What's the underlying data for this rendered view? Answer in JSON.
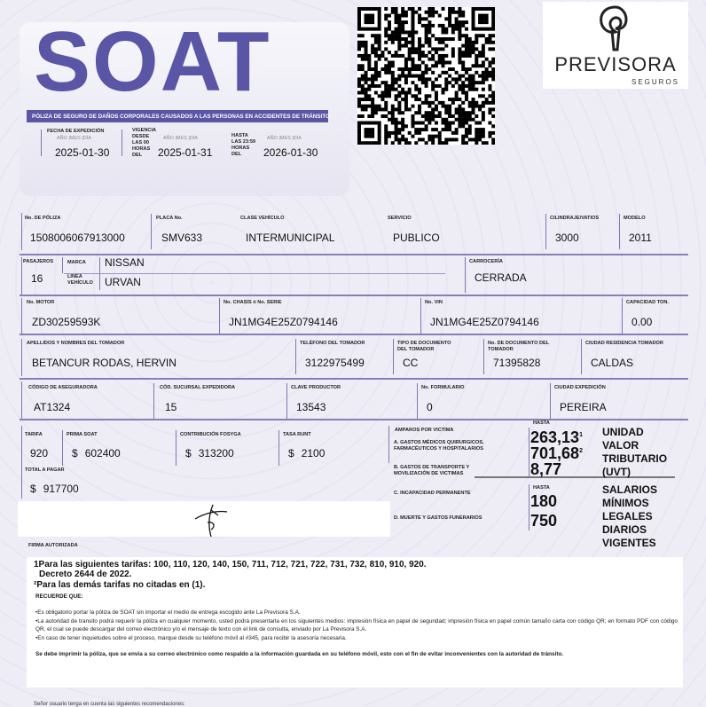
{
  "header": {
    "title": "SOAT",
    "subtitle": "PÓLIZA DE SEGURO DE DAÑOS CORPORALES CAUSADOS A LAS PERSONAS EN ACCIDENTES DE TRÁNSITO",
    "expedicion_label": "FECHA DE EXPEDICIÓN",
    "date_parts": "AÑO  |MES  |DÍA",
    "expedicion": "2025-01-30",
    "vigencia_label": "VIGENCIA",
    "desde_label": "DESDE LAS 00 HORAS DEL",
    "desde": "2025-01-31",
    "hasta_label": "HASTA LAS 23:59 HORAS DEL",
    "hasta": "2026-01-30"
  },
  "logo": {
    "name": "PREVISORA",
    "tagline": "SEGUROS"
  },
  "fields": {
    "poliza": {
      "label": "No. DE PÓLIZA",
      "value": "1508006067913000"
    },
    "placa": {
      "label": "PLACA No.",
      "value": "SMV633"
    },
    "clase": {
      "label": "CLASE VEHÍCULO",
      "value": "INTERMUNICIPAL"
    },
    "servicio": {
      "label": "SERVICIO",
      "value": "PUBLICO"
    },
    "cilindraje": {
      "label": "CILINDRAJE/VATIOS",
      "value": "3000"
    },
    "modelo": {
      "label": "MODELO",
      "value": "2011"
    },
    "pasajeros": {
      "label": "PASAJEROS",
      "value": "16"
    },
    "marca": {
      "label": "MARCA",
      "value": "NISSAN"
    },
    "linea": {
      "label": "LÍNEA VEHÍCULO",
      "value": "URVAN"
    },
    "carroceria": {
      "label": "CARROCERÍA",
      "value": "CERRADA"
    },
    "motor": {
      "label": "No. MOTOR",
      "value": "ZD30259593K"
    },
    "chasis": {
      "label": "No. CHASIS ó No. SERIE",
      "value": "JN1MG4E25Z0794146"
    },
    "vin": {
      "label": "No. VIN",
      "value": "JN1MG4E25Z0794146"
    },
    "capacidad": {
      "label": "CAPACIDAD TON.",
      "value": "0.00"
    },
    "tomador": {
      "label": "APELLIDOS Y NOMBRES DEL TOMADOR",
      "value": "BETANCUR RODAS, HERVIN"
    },
    "telefono": {
      "label": "TELÉFONO DEL TOMADOR",
      "value": "3122975499"
    },
    "tipo_doc": {
      "label": "TIPO DE DOCUMENTO DEL TOMADOR",
      "value": "CC"
    },
    "num_doc": {
      "label": "No. DE DOCUMENTO DEL TOMADOR",
      "value": "71395828"
    },
    "ciudad_res": {
      "label": "CIUDAD RESIDENCIA TOMADOR",
      "value": "CALDAS"
    },
    "cod_aseg": {
      "label": "CÓDIGO DE ASEGURADORA",
      "value": "AT1324"
    },
    "sucursal": {
      "label": "CÓD. SUCURSAL EXPEDIDORA",
      "value": "15"
    },
    "productor": {
      "label": "CLAVE PRODUCTOR",
      "value": "13543"
    },
    "formulario": {
      "label": "No. FORMULARIO",
      "value": "0"
    },
    "ciudad_exp": {
      "label": "CIUDAD EXPEDICIÓN",
      "value": "PEREIRA"
    },
    "tarifa": {
      "label": "TARIFA",
      "value": "920"
    },
    "prima": {
      "label": "PRIMA SOAT",
      "value": "602400"
    },
    "fosyga": {
      "label": "CONTRIBUCIÓN FOSYGA",
      "value": "313200"
    },
    "runt": {
      "label": "TASA RUNT",
      "value": "2100"
    },
    "total": {
      "label": "TOTAL A PAGAR",
      "value": "917700"
    },
    "currency": "$"
  },
  "amparos": {
    "title": "AMPAROS POR VICTIMA",
    "hasta": "HASTA",
    "a": "A. GASTOS MÉDICOS QUIRURGICOS, FARMACÉUTICOS Y HOSPITALARIOS",
    "b": "B. GASTOS DE TRANSPORTE Y MOVILIZACIÓN DE VICTIMAS",
    "c": "C. INCAPACIDAD PERMANENTE",
    "d": "D. MUERTE Y GASTOS FUNERARIOS",
    "a1": "263,13",
    "a1_sup": "1",
    "a2": "701,68",
    "a2_sup": "2",
    "b_val": "8,77",
    "uvt": [
      "UNIDAD",
      "VALOR",
      "TRIBUTARIO",
      "(UVT)"
    ],
    "c_val": "180",
    "d_val": "750",
    "smldv": [
      "SALARIOS",
      "MÍNIMOS",
      "LEGALES",
      "DIARIOS",
      "VIGENTES"
    ]
  },
  "firma": "FIRMA AUTORIZADA",
  "notes": {
    "n1": "1Para las siguientes tarifas: 100, 110, 120, 140, 150, 711, 712, 721, 722, 731, 732, 810, 910, 920.",
    "n1b": "Decreto 2644 de 2022.",
    "n2": "²Para las demás tarifas no citadas en (1).",
    "recuerde": "RECUERDE QUE:",
    "b1": "•Es obligatorio  portar la póliza de SOAT sin importar el medio de entrega escogido ante La Previsora S.A.",
    "b2": "•La autoridad de transito podrá requerir la póliza en cualquier momento,  usted podrá presentarla en los siguientes medios: impresión física en papel de seguridad; impresión física en papel común tamaño carta con código QR; en formato PDF con código QR, el cual se puede descargar del correo electrónico y/o el mensaje de texto con el link de consulta, enviado por La Previsora S.A.",
    "b3": "•En caso de tener inquietudes sobre el proceso, marque desde su teléfono móvil al #345, para recibir la asesoría necesaria.",
    "bold": "Se debe imprimir la póliza, que se envia a su correo electrónico como respaldo a la información guardada en su teléfono móvil, esto con el fin de evitar  inconvenientes con la autoridad de tránsito."
  },
  "footer": "Señor usuario tenga en cuenta las siguientes recomendaciones:",
  "colors": {
    "brand": "#5b55a6",
    "lines": "#8580b8"
  }
}
